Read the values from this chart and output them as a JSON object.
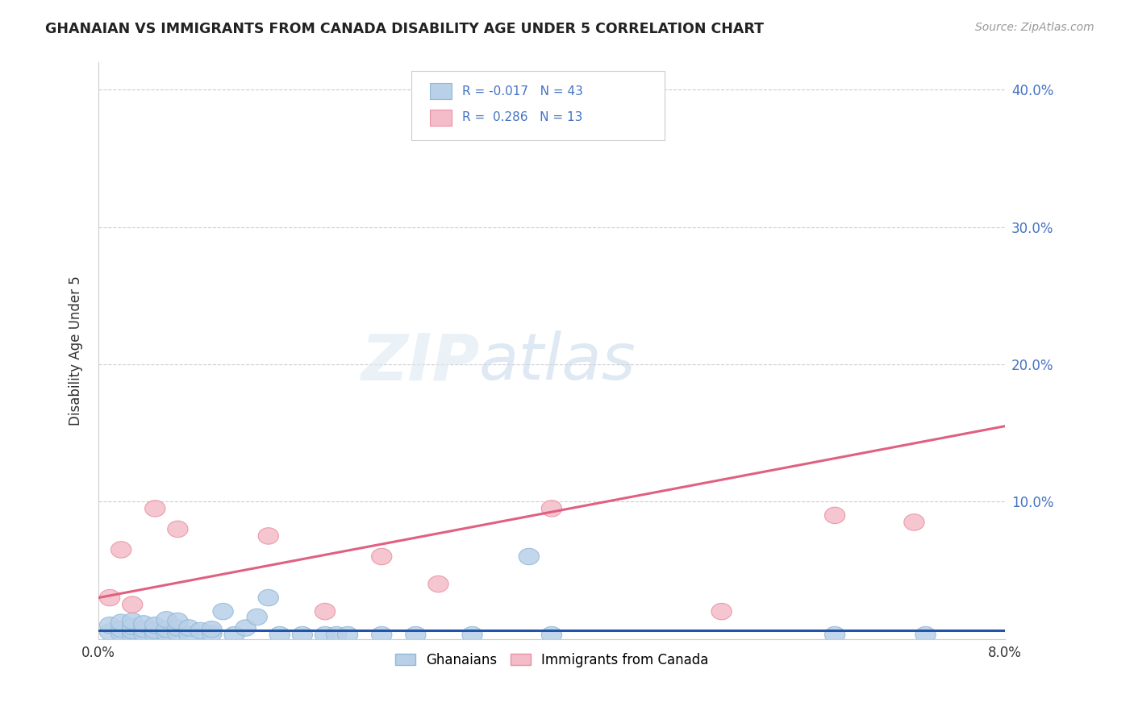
{
  "title": "GHANAIAN VS IMMIGRANTS FROM CANADA DISABILITY AGE UNDER 5 CORRELATION CHART",
  "source": "Source: ZipAtlas.com",
  "ylabel": "Disability Age Under 5",
  "xmin": 0.0,
  "xmax": 0.08,
  "ymin": 0.0,
  "ymax": 0.42,
  "ytick_vals": [
    0.0,
    0.1,
    0.2,
    0.3,
    0.4
  ],
  "ytick_labels_right": [
    "",
    "10.0%",
    "20.0%",
    "30.0%",
    "40.0%"
  ],
  "xtick_vals": [
    0.0,
    0.08
  ],
  "xtick_labels": [
    "0.0%",
    "8.0%"
  ],
  "R_ghanaian": -0.017,
  "N_ghanaian": 43,
  "R_canada": 0.286,
  "N_canada": 13,
  "ghanaian_fill": "#b8d0e8",
  "ghanaian_edge": "#90b8d8",
  "canada_fill": "#f4bcc8",
  "canada_edge": "#e890a0",
  "ghanaian_line_color": "#2255aa",
  "canada_line_color": "#e06080",
  "background_color": "#ffffff",
  "grid_color": "#cccccc",
  "title_color": "#222222",
  "axis_label_color": "#333333",
  "right_tick_color": "#4472c4",
  "ghanaian_x": [
    0.001,
    0.001,
    0.002,
    0.002,
    0.002,
    0.003,
    0.003,
    0.003,
    0.003,
    0.004,
    0.004,
    0.004,
    0.005,
    0.005,
    0.005,
    0.006,
    0.006,
    0.006,
    0.007,
    0.007,
    0.007,
    0.008,
    0.008,
    0.009,
    0.01,
    0.01,
    0.011,
    0.012,
    0.013,
    0.014,
    0.015,
    0.016,
    0.018,
    0.02,
    0.021,
    0.022,
    0.025,
    0.028,
    0.033,
    0.038,
    0.04,
    0.065,
    0.073
  ],
  "ghanaian_y": [
    0.005,
    0.01,
    0.004,
    0.007,
    0.012,
    0.003,
    0.006,
    0.009,
    0.013,
    0.004,
    0.007,
    0.011,
    0.003,
    0.006,
    0.01,
    0.004,
    0.007,
    0.014,
    0.004,
    0.008,
    0.013,
    0.003,
    0.008,
    0.006,
    0.004,
    0.007,
    0.02,
    0.003,
    0.008,
    0.016,
    0.03,
    0.003,
    0.003,
    0.003,
    0.003,
    0.003,
    0.003,
    0.003,
    0.003,
    0.06,
    0.003,
    0.003,
    0.003
  ],
  "canada_x": [
    0.001,
    0.002,
    0.003,
    0.005,
    0.007,
    0.015,
    0.02,
    0.025,
    0.03,
    0.04,
    0.055,
    0.065,
    0.072
  ],
  "canada_y": [
    0.03,
    0.065,
    0.025,
    0.095,
    0.08,
    0.075,
    0.02,
    0.06,
    0.04,
    0.095,
    0.02,
    0.09,
    0.085
  ],
  "canada_line_x0": 0.0,
  "canada_line_y0": 0.03,
  "canada_line_x1": 0.08,
  "canada_line_y1": 0.155,
  "ghanaian_line_x0": 0.0,
  "ghanaian_line_y0": 0.006,
  "ghanaian_line_x1": 0.08,
  "ghanaian_line_y1": 0.006
}
